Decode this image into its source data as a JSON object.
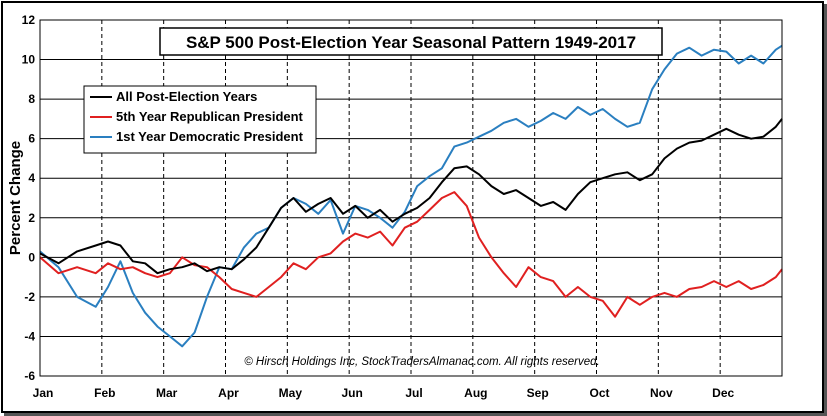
{
  "chart_data": {
    "type": "line",
    "title": "S&P 500 Post-Election Year Seasonal Pattern 1949-2017",
    "ylabel": "Percent Change",
    "xlabel": "",
    "ylim": [
      -6,
      12
    ],
    "yticks": [
      -6,
      -4,
      -2,
      0,
      2,
      4,
      6,
      8,
      10,
      12
    ],
    "categories": [
      "Jan",
      "Feb",
      "Mar",
      "Apr",
      "May",
      "Jun",
      "Jul",
      "Aug",
      "Sep",
      "Oct",
      "Nov",
      "Dec"
    ],
    "grid": true,
    "legend": "top-left",
    "copyright": "© Hirsch Holdings Inc, StockTradersAlmanac.com.  All rights reserved.",
    "x_scale": "month index 0-12 (Jan=0)",
    "series": [
      {
        "name": "All Post-Election Years",
        "color": "#000000",
        "x": [
          0,
          0.3,
          0.6,
          0.9,
          1.1,
          1.3,
          1.5,
          1.7,
          1.9,
          2.1,
          2.3,
          2.5,
          2.7,
          2.9,
          3.1,
          3.3,
          3.5,
          3.7,
          3.9,
          4.1,
          4.3,
          4.5,
          4.7,
          4.9,
          5.1,
          5.3,
          5.5,
          5.7,
          5.9,
          6.1,
          6.3,
          6.5,
          6.7,
          6.9,
          7.1,
          7.3,
          7.5,
          7.7,
          7.9,
          8.1,
          8.3,
          8.5,
          8.7,
          8.9,
          9.1,
          9.3,
          9.5,
          9.7,
          9.9,
          10.1,
          10.3,
          10.5,
          10.7,
          10.9,
          11.1,
          11.3,
          11.5,
          11.7,
          11.9,
          12
        ],
        "values": [
          0.2,
          -0.3,
          0.3,
          0.6,
          0.8,
          0.6,
          -0.2,
          -0.3,
          -0.8,
          -0.6,
          -0.5,
          -0.3,
          -0.7,
          -0.5,
          -0.6,
          -0.1,
          0.5,
          1.5,
          2.5,
          3.0,
          2.3,
          2.7,
          3.0,
          2.2,
          2.6,
          2.0,
          2.4,
          1.8,
          2.2,
          2.5,
          3.0,
          3.8,
          4.5,
          4.6,
          4.2,
          3.6,
          3.2,
          3.4,
          3.0,
          2.6,
          2.8,
          2.4,
          3.2,
          3.8,
          4.0,
          4.2,
          4.3,
          3.9,
          4.2,
          5.0,
          5.5,
          5.8,
          5.9,
          6.2,
          6.5,
          6.2,
          6.0,
          6.1,
          6.6,
          7.0
        ]
      },
      {
        "name": "5th Year Republican President",
        "color": "#e02020",
        "x": [
          0,
          0.3,
          0.6,
          0.9,
          1.1,
          1.3,
          1.5,
          1.7,
          1.9,
          2.1,
          2.3,
          2.5,
          2.7,
          2.9,
          3.1,
          3.3,
          3.5,
          3.7,
          3.9,
          4.1,
          4.3,
          4.5,
          4.7,
          4.9,
          5.1,
          5.3,
          5.5,
          5.7,
          5.9,
          6.1,
          6.3,
          6.5,
          6.7,
          6.9,
          7.1,
          7.3,
          7.5,
          7.7,
          7.9,
          8.1,
          8.3,
          8.5,
          8.7,
          8.9,
          9.1,
          9.3,
          9.5,
          9.7,
          9.9,
          10.1,
          10.3,
          10.5,
          10.7,
          10.9,
          11.1,
          11.3,
          11.5,
          11.7,
          11.9,
          12
        ],
        "values": [
          0.0,
          -0.8,
          -0.5,
          -0.8,
          -0.3,
          -0.6,
          -0.5,
          -0.8,
          -1.0,
          -0.8,
          0.0,
          -0.4,
          -0.5,
          -1.0,
          -1.6,
          -1.8,
          -2.0,
          -1.5,
          -1.0,
          -0.3,
          -0.6,
          0.0,
          0.2,
          0.8,
          1.2,
          1.0,
          1.3,
          0.6,
          1.5,
          1.8,
          2.4,
          3.0,
          3.3,
          2.6,
          1.0,
          0.0,
          -0.8,
          -1.5,
          -0.5,
          -1.0,
          -1.2,
          -2.0,
          -1.5,
          -2.0,
          -2.2,
          -3.0,
          -2.0,
          -2.4,
          -2.0,
          -1.8,
          -2.0,
          -1.6,
          -1.5,
          -1.2,
          -1.5,
          -1.2,
          -1.6,
          -1.4,
          -1.0,
          -0.6
        ]
      },
      {
        "name": "1st Year Democratic President",
        "color": "#2a7fc0",
        "x": [
          0,
          0.3,
          0.6,
          0.9,
          1.1,
          1.3,
          1.5,
          1.7,
          1.9,
          2.1,
          2.3,
          2.5,
          2.7,
          2.9,
          3.1,
          3.3,
          3.5,
          3.7,
          3.9,
          4.1,
          4.3,
          4.5,
          4.7,
          4.9,
          5.1,
          5.3,
          5.5,
          5.7,
          5.9,
          6.1,
          6.3,
          6.5,
          6.7,
          6.9,
          7.1,
          7.3,
          7.5,
          7.7,
          7.9,
          8.1,
          8.3,
          8.5,
          8.7,
          8.9,
          9.1,
          9.3,
          9.5,
          9.7,
          9.9,
          10.1,
          10.3,
          10.5,
          10.7,
          10.9,
          11.1,
          11.3,
          11.5,
          11.7,
          11.9,
          12
        ],
        "values": [
          0.3,
          -0.5,
          -2.0,
          -2.5,
          -1.5,
          -0.2,
          -1.8,
          -2.8,
          -3.5,
          -4.0,
          -4.5,
          -3.8,
          -2.0,
          -0.5,
          -0.6,
          0.5,
          1.2,
          1.5,
          2.5,
          3.0,
          2.7,
          2.2,
          2.9,
          1.2,
          2.6,
          2.4,
          2.0,
          1.5,
          2.3,
          3.6,
          4.1,
          4.5,
          5.6,
          5.8,
          6.1,
          6.4,
          6.8,
          7.0,
          6.6,
          6.9,
          7.3,
          7.0,
          7.6,
          7.2,
          7.5,
          7.0,
          6.6,
          6.8,
          8.5,
          9.5,
          10.3,
          10.6,
          10.2,
          10.5,
          10.4,
          9.8,
          10.2,
          9.8,
          10.5,
          10.7
        ]
      }
    ]
  }
}
